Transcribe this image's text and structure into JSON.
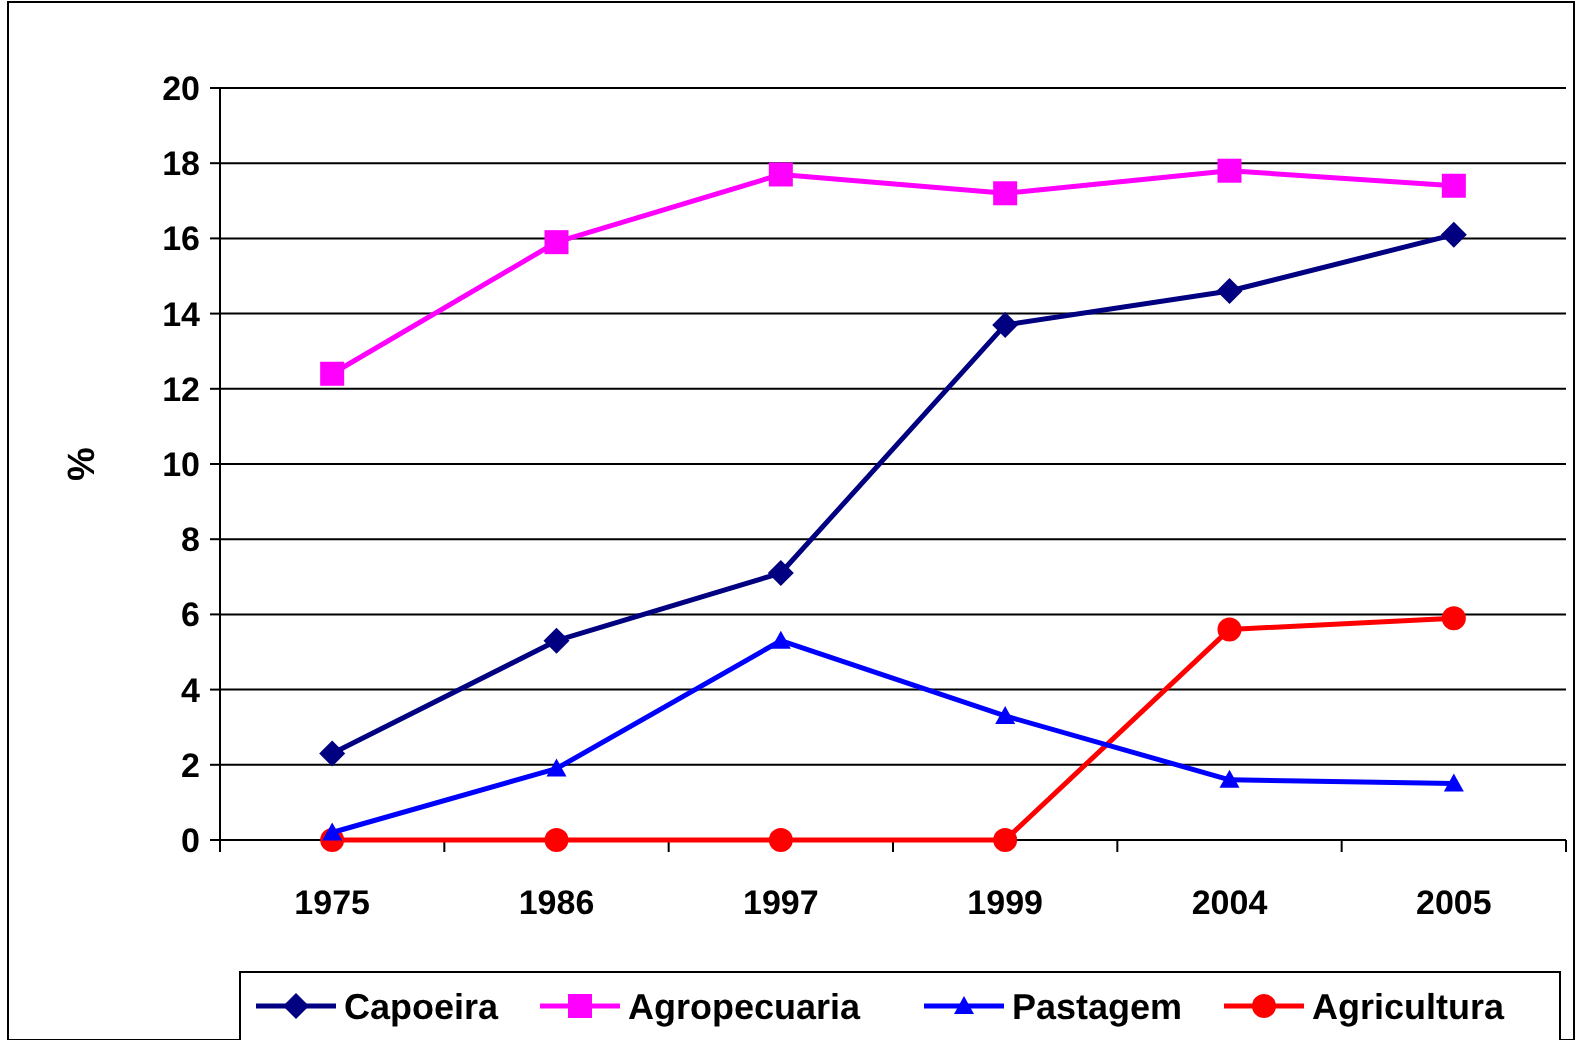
{
  "chart_data": {
    "type": "line",
    "ylabel": "%",
    "categories": [
      "1975",
      "1986",
      "1997",
      "1999",
      "2004",
      "2005"
    ],
    "series": [
      {
        "name": "Capoeira",
        "color": "#000080",
        "marker": "diamond",
        "values": [
          2.3,
          5.3,
          7.1,
          13.7,
          14.6,
          16.1
        ]
      },
      {
        "name": "Agropecuaria",
        "color": "#ff00ff",
        "marker": "square",
        "values": [
          12.4,
          15.9,
          17.7,
          17.2,
          17.8,
          17.4
        ]
      },
      {
        "name": "Pastagem",
        "color": "#0000ff",
        "marker": "triangle",
        "values": [
          0.2,
          1.9,
          5.3,
          3.3,
          1.6,
          1.5
        ]
      },
      {
        "name": "Agricultura",
        "color": "#ff0000",
        "marker": "circle",
        "values": [
          0,
          0,
          0,
          0,
          5.6,
          5.9
        ]
      }
    ],
    "ylim": [
      0,
      20
    ],
    "yticks": [
      0,
      2,
      4,
      6,
      8,
      10,
      12,
      14,
      16,
      18,
      20
    ],
    "grid": "y",
    "legend": "bottom"
  }
}
